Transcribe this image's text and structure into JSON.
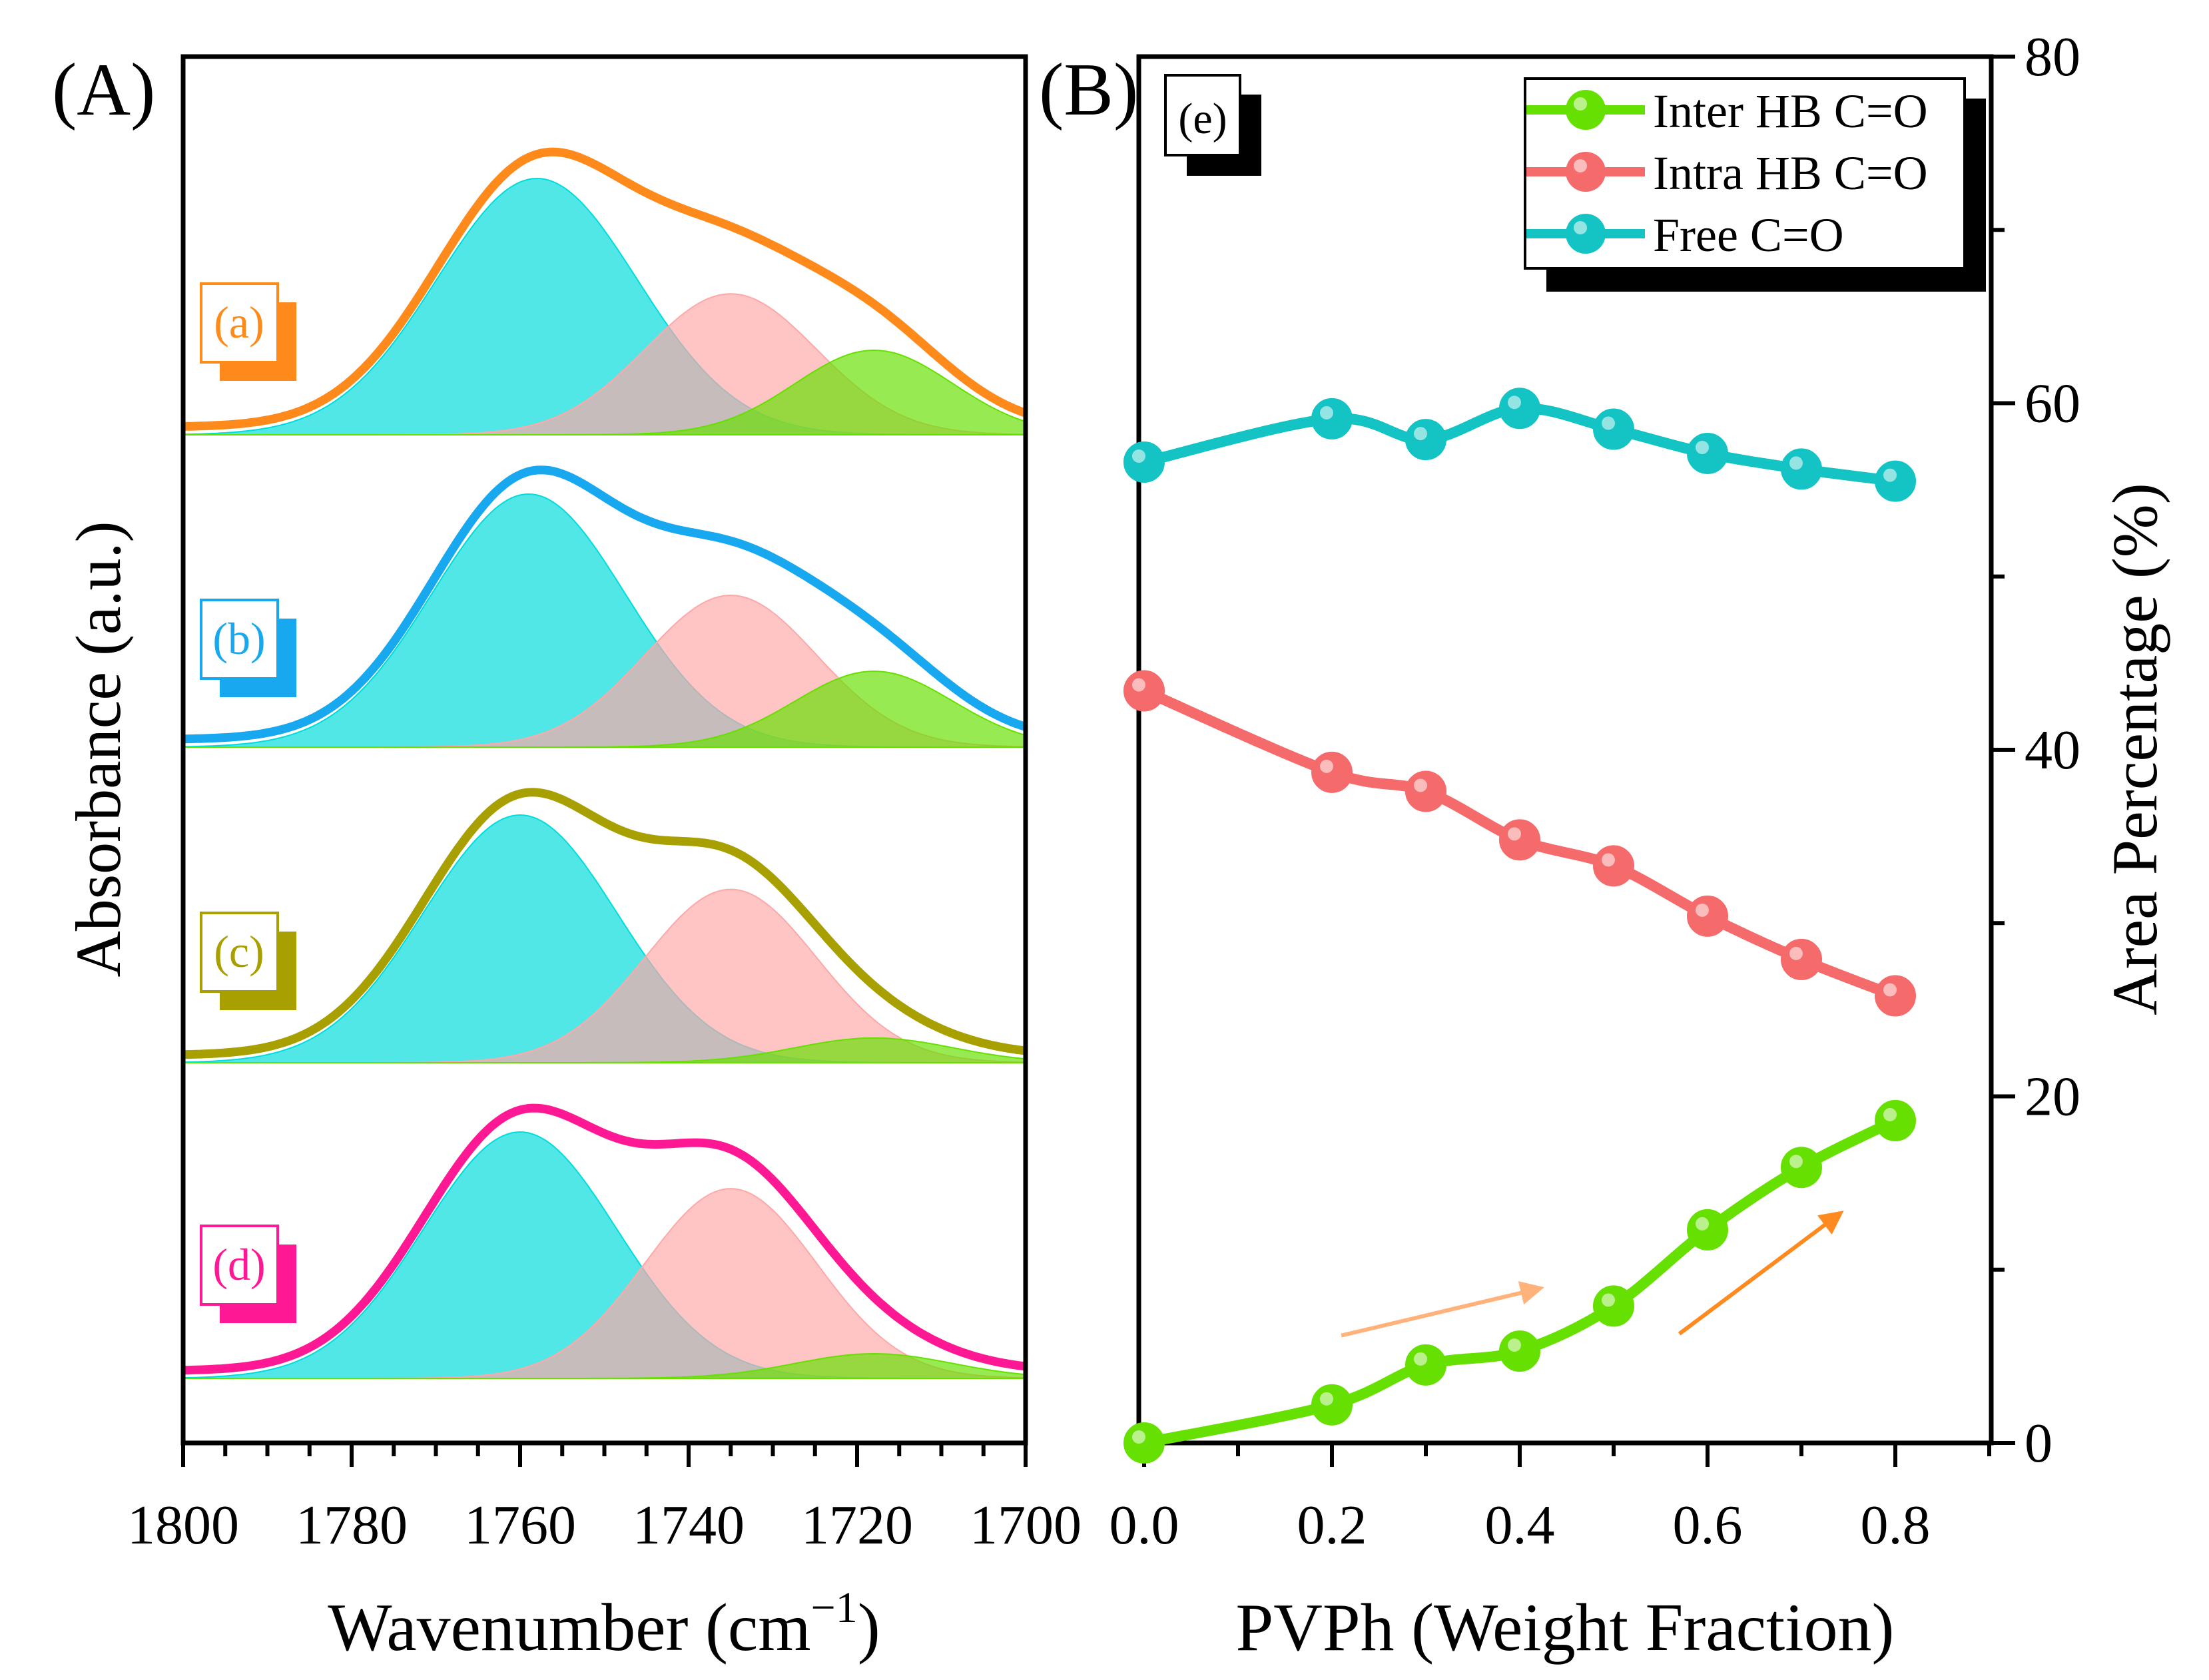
{
  "figure": {
    "panel_a_label": "(A)",
    "panel_b_label": "(B)"
  },
  "colors": {
    "free": "#00dcdc",
    "intra": "#ffa8a8",
    "inter": "#66e000",
    "overlap_free_intra": "#3fbcbc",
    "overlap_intra_inter": "#d0a838",
    "overlap_free_inter": "#00bb88",
    "envelope_a": "#ff8a1c",
    "envelope_b": "#18a8f0",
    "envelope_c": "#a8a000",
    "envelope_d": "#ff1893",
    "line_inter": "#66e000",
    "line_intra": "#f56a6a",
    "line_free": "#14c4c4",
    "arrow_light": "#ffb27a",
    "arrow_dark": "#ff8a20"
  },
  "chart_data": [
    {
      "type": "area",
      "panel": "A",
      "xlabel": "Wavenumber (cm",
      "xlabel_sup": "−1",
      "xlabel_close": ")",
      "ylabel": "Absorbance (a.u.)",
      "xlim": [
        1800,
        1700
      ],
      "xticks": [
        "1800",
        "1780",
        "1760",
        "1740",
        "1720",
        "1700"
      ],
      "subplots": [
        {
          "label": "(a)",
          "envelope_color_key": "envelope_a",
          "components": [
            {
              "name": "Free C=O",
              "center": 1758,
              "height": 1.0,
              "fwhm": 28
            },
            {
              "name": "Intra HB C=O",
              "center": 1735,
              "height": 0.55,
              "fwhm": 24
            },
            {
              "name": "Inter HB C=O",
              "center": 1718,
              "height": 0.33,
              "fwhm": 22
            }
          ],
          "envelope_peak": 1.13
        },
        {
          "label": "(b)",
          "envelope_color_key": "envelope_b",
          "components": [
            {
              "name": "Free C=O",
              "center": 1759,
              "height": 1.0,
              "fwhm": 27
            },
            {
              "name": "Intra HB C=O",
              "center": 1735,
              "height": 0.6,
              "fwhm": 24
            },
            {
              "name": "Inter HB C=O",
              "center": 1718,
              "height": 0.3,
              "fwhm": 22
            }
          ],
          "envelope_peak": 1.15
        },
        {
          "label": "(c)",
          "envelope_color_key": "envelope_c",
          "components": [
            {
              "name": "Free C=O",
              "center": 1760,
              "height": 1.0,
              "fwhm": 27
            },
            {
              "name": "Intra HB C=O",
              "center": 1735,
              "height": 0.7,
              "fwhm": 24
            },
            {
              "name": "Inter HB C=O",
              "center": 1718,
              "height": 0.1,
              "fwhm": 22
            }
          ],
          "envelope_peak": 1.15
        },
        {
          "label": "(d)",
          "envelope_color_key": "envelope_d",
          "components": [
            {
              "name": "Free C=O",
              "center": 1760,
              "height": 1.0,
              "fwhm": 27
            },
            {
              "name": "Intra HB C=O",
              "center": 1735,
              "height": 0.77,
              "fwhm": 24
            },
            {
              "name": "Inter HB C=O",
              "center": 1718,
              "height": 0.1,
              "fwhm": 22
            }
          ],
          "envelope_peak": 1.15
        }
      ]
    },
    {
      "type": "line",
      "panel": "B",
      "annotation": "(e)",
      "xlabel": "PVPh (Weight Fraction)",
      "ylabel": "Area Percentage (%)",
      "xlim": [
        0.0,
        0.9
      ],
      "ylim": [
        0,
        80
      ],
      "xticks": [
        "0.0",
        "0.2",
        "0.4",
        "0.6",
        "0.8"
      ],
      "yticks": [
        "0",
        "20",
        "40",
        "60",
        "80"
      ],
      "legend_position": "top-right",
      "series": [
        {
          "name": "Inter HB C=O",
          "color_key": "line_inter",
          "x": [
            0.0,
            0.2,
            0.3,
            0.4,
            0.5,
            0.6,
            0.7,
            0.8
          ],
          "values": [
            0.0,
            2.2,
            4.5,
            5.3,
            7.9,
            12.3,
            15.9,
            18.6
          ]
        },
        {
          "name": "Intra HB C=O",
          "color_key": "line_intra",
          "x": [
            0.0,
            0.2,
            0.3,
            0.4,
            0.5,
            0.6,
            0.7,
            0.8
          ],
          "values": [
            43.4,
            38.7,
            37.6,
            34.8,
            33.3,
            30.4,
            27.9,
            25.8
          ]
        },
        {
          "name": "Free C=O",
          "color_key": "line_free",
          "x": [
            0.0,
            0.2,
            0.3,
            0.4,
            0.5,
            0.6,
            0.7,
            0.8
          ],
          "values": [
            56.6,
            59.1,
            57.9,
            59.7,
            58.5,
            57.1,
            56.2,
            55.5
          ]
        }
      ],
      "arrows": [
        {
          "from": [
            0.21,
            6.2
          ],
          "to": [
            0.42,
            8.9
          ],
          "color_key": "arrow_light"
        },
        {
          "from": [
            0.57,
            6.3
          ],
          "to": [
            0.74,
            13.2
          ],
          "color_key": "arrow_dark"
        }
      ]
    }
  ]
}
